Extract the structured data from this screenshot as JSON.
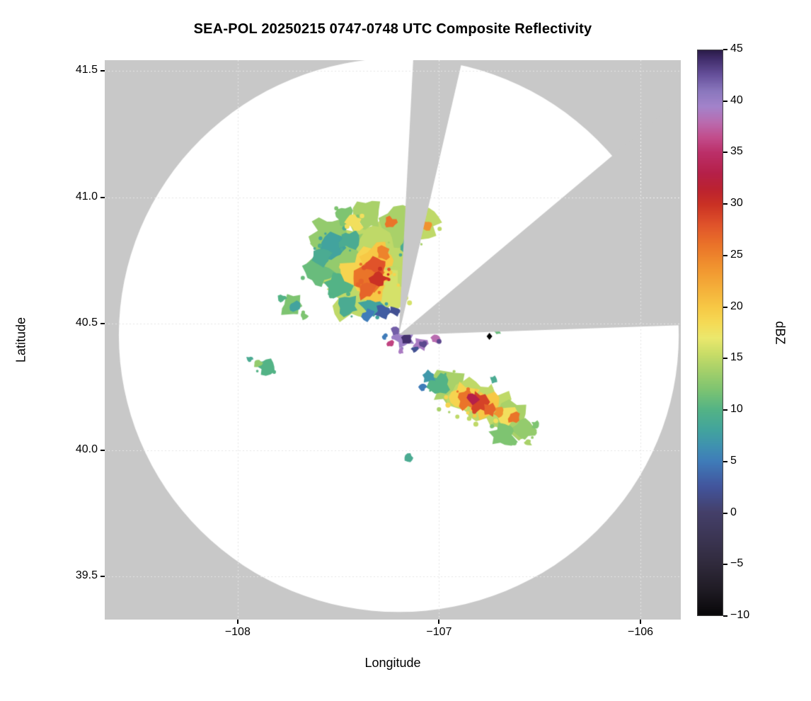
{
  "chart_data": {
    "type": "heatmap",
    "title": "SEA-POL 20250215 0747-0748 UTC Composite Reflectivity",
    "xlabel": "Longitude",
    "ylabel": "Latitude",
    "xlim": [
      -108.66,
      -105.8
    ],
    "ylim": [
      39.33,
      41.542
    ],
    "grid": true,
    "xticks": [
      {
        "value": -108,
        "label": "−108"
      },
      {
        "value": -107,
        "label": "−107"
      },
      {
        "value": -106,
        "label": "−106"
      }
    ],
    "yticks": [
      {
        "value": 39.5,
        "label": "39.5"
      },
      {
        "value": 40.0,
        "label": "40.0"
      },
      {
        "value": 40.5,
        "label": "40.5"
      },
      {
        "value": 41.0,
        "label": "41.0"
      },
      {
        "value": 41.5,
        "label": "41.5"
      }
    ],
    "colors": {
      "outside": "#c8c8c8",
      "inside": "#ffffff"
    },
    "radar": {
      "center_lon": -107.2,
      "center_lat": 40.455,
      "radius_lon_deg": 1.39,
      "radius_lat_deg": 1.095,
      "blocked_sectors_az": [
        [
          3,
          13
        ],
        [
          50,
          88
        ]
      ]
    },
    "marker": {
      "lon": -106.75,
      "lat": 40.45,
      "symbol": "diamond",
      "color": "#000000"
    },
    "colorbar": {
      "label": "dBZ",
      "min": -10,
      "max": 45,
      "ticks": [
        {
          "value": 45,
          "label": "45"
        },
        {
          "value": 40,
          "label": "40"
        },
        {
          "value": 35,
          "label": "35"
        },
        {
          "value": 30,
          "label": "30"
        },
        {
          "value": 25,
          "label": "25"
        },
        {
          "value": 20,
          "label": "20"
        },
        {
          "value": 15,
          "label": "15"
        },
        {
          "value": 10,
          "label": "10"
        },
        {
          "value": 5,
          "label": "5"
        },
        {
          "value": 0,
          "label": "0"
        },
        {
          "value": -5,
          "label": "−5"
        },
        {
          "value": -10,
          "label": "−10"
        }
      ],
      "stops": [
        [
          -10,
          "#070608"
        ],
        [
          -7.5,
          "#1f1b24"
        ],
        [
          -5,
          "#302a3c"
        ],
        [
          -2.5,
          "#3b3553"
        ],
        [
          0,
          "#443f69"
        ],
        [
          2.5,
          "#42549c"
        ],
        [
          5,
          "#3f7cb9"
        ],
        [
          6.5,
          "#3f92b0"
        ],
        [
          8,
          "#42a39e"
        ],
        [
          10,
          "#53b386"
        ],
        [
          12,
          "#7ec471"
        ],
        [
          14,
          "#a9d169"
        ],
        [
          15.5,
          "#cadd67"
        ],
        [
          17,
          "#ebe86d"
        ],
        [
          18.5,
          "#f5da55"
        ],
        [
          20,
          "#f7c845"
        ],
        [
          22,
          "#f4ad39"
        ],
        [
          24,
          "#f0922f"
        ],
        [
          26,
          "#ea7429"
        ],
        [
          28,
          "#e0532a"
        ],
        [
          30,
          "#ca3124"
        ],
        [
          31.5,
          "#bb2231"
        ],
        [
          33,
          "#b52049"
        ],
        [
          35,
          "#bb2f69"
        ],
        [
          36.5,
          "#c24d8c"
        ],
        [
          38,
          "#b96cb0"
        ],
        [
          39.5,
          "#a383cb"
        ],
        [
          41,
          "#8a77bd"
        ],
        [
          42.5,
          "#68529d"
        ],
        [
          44,
          "#44306f"
        ],
        [
          45,
          "#2a1b48"
        ]
      ]
    },
    "echoes_format": [
      "lon",
      "lat",
      "radius_deg",
      "dbz"
    ],
    "echoes": [
      [
        -107.38,
        40.72,
        0.2,
        15
      ],
      [
        -107.3,
        40.8,
        0.14,
        15
      ],
      [
        -107.5,
        40.78,
        0.13,
        13
      ],
      [
        -107.42,
        40.6,
        0.12,
        15
      ],
      [
        -107.25,
        40.63,
        0.1,
        16
      ],
      [
        -107.18,
        40.88,
        0.1,
        14
      ],
      [
        -107.07,
        40.9,
        0.07,
        15
      ],
      [
        -107.55,
        40.86,
        0.08,
        13
      ],
      [
        -107.6,
        40.7,
        0.07,
        11
      ],
      [
        -107.35,
        40.93,
        0.07,
        14
      ],
      [
        -107.47,
        40.93,
        0.05,
        12
      ],
      [
        -107.52,
        40.8,
        0.07,
        8
      ],
      [
        -107.45,
        40.83,
        0.05,
        9
      ],
      [
        -107.58,
        40.76,
        0.05,
        9
      ],
      [
        -107.33,
        40.57,
        0.06,
        8
      ],
      [
        -107.45,
        40.57,
        0.05,
        9
      ],
      [
        -107.15,
        40.8,
        0.05,
        9
      ],
      [
        -107.5,
        40.65,
        0.06,
        10
      ],
      [
        -107.35,
        40.7,
        0.12,
        19
      ],
      [
        -107.3,
        40.75,
        0.08,
        20
      ],
      [
        -107.33,
        40.63,
        0.07,
        20
      ],
      [
        -107.42,
        40.9,
        0.04,
        18
      ],
      [
        -107.12,
        40.93,
        0.05,
        18
      ],
      [
        -107.34,
        40.68,
        0.07,
        26
      ],
      [
        -107.31,
        40.73,
        0.05,
        28
      ],
      [
        -107.36,
        40.63,
        0.045,
        27
      ],
      [
        -107.28,
        40.78,
        0.035,
        25
      ],
      [
        -107.24,
        40.9,
        0.03,
        26
      ],
      [
        -107.06,
        40.89,
        0.025,
        24
      ],
      [
        -107.3,
        40.68,
        0.04,
        30
      ],
      [
        -107.28,
        40.545,
        0.035,
        3
      ],
      [
        -107.35,
        40.535,
        0.03,
        5
      ],
      [
        -107.22,
        40.55,
        0.025,
        2
      ],
      [
        -107.73,
        40.57,
        0.055,
        12
      ],
      [
        -107.72,
        40.57,
        0.03,
        8
      ],
      [
        -107.78,
        40.6,
        0.02,
        10
      ],
      [
        -107.67,
        40.53,
        0.02,
        12
      ],
      [
        -107.86,
        40.33,
        0.04,
        10
      ],
      [
        -107.9,
        40.345,
        0.025,
        13
      ],
      [
        -107.94,
        40.36,
        0.016,
        9
      ],
      [
        -106.95,
        40.24,
        0.09,
        14
      ],
      [
        -106.85,
        40.21,
        0.1,
        15
      ],
      [
        -106.74,
        40.17,
        0.1,
        15
      ],
      [
        -106.64,
        40.12,
        0.09,
        14
      ],
      [
        -106.68,
        40.06,
        0.06,
        12
      ],
      [
        -106.58,
        40.08,
        0.05,
        13
      ],
      [
        -107.0,
        40.26,
        0.05,
        10
      ],
      [
        -107.05,
        40.29,
        0.03,
        7
      ],
      [
        -107.08,
        40.25,
        0.02,
        5
      ],
      [
        -106.88,
        40.21,
        0.07,
        19
      ],
      [
        -106.78,
        40.18,
        0.07,
        20
      ],
      [
        -106.66,
        40.13,
        0.05,
        18
      ],
      [
        -106.86,
        40.2,
        0.05,
        26
      ],
      [
        -106.8,
        40.19,
        0.05,
        29
      ],
      [
        -106.83,
        40.2,
        0.03,
        33
      ],
      [
        -106.75,
        40.16,
        0.035,
        27
      ],
      [
        -106.63,
        40.13,
        0.03,
        26
      ],
      [
        -106.7,
        40.15,
        0.025,
        24
      ],
      [
        -106.52,
        40.1,
        0.02,
        12
      ],
      [
        -106.56,
        40.03,
        0.02,
        14
      ],
      [
        -106.73,
        40.28,
        0.018,
        9
      ],
      [
        -107.17,
        40.44,
        0.045,
        40
      ],
      [
        -107.16,
        40.44,
        0.025,
        44
      ],
      [
        -107.09,
        40.42,
        0.035,
        39
      ],
      [
        -107.08,
        40.42,
        0.018,
        43
      ],
      [
        -107.22,
        40.47,
        0.02,
        42
      ],
      [
        -107.02,
        40.44,
        0.022,
        38
      ],
      [
        -107.0,
        40.43,
        0.012,
        43
      ],
      [
        -107.13,
        40.47,
        0.015,
        41
      ],
      [
        -107.24,
        40.42,
        0.018,
        36
      ],
      [
        -107.19,
        40.39,
        0.016,
        39
      ],
      [
        -107.27,
        40.45,
        0.014,
        5
      ],
      [
        -107.12,
        40.4,
        0.016,
        2
      ],
      [
        -107.15,
        39.97,
        0.02,
        9
      ],
      [
        -106.71,
        40.47,
        0.016,
        11
      ]
    ]
  }
}
